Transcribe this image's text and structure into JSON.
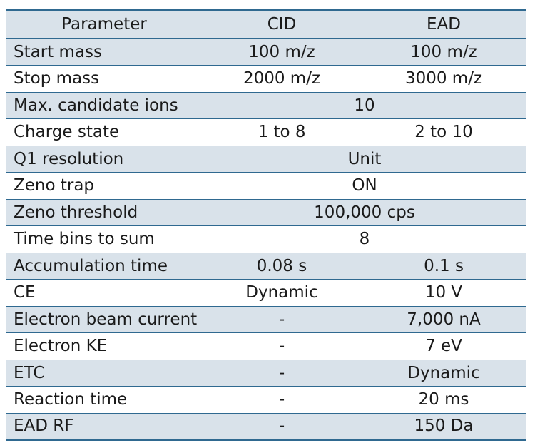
{
  "table": {
    "headers": [
      "Parameter",
      "CID",
      "EAD"
    ],
    "rows": [
      {
        "label": "Start mass",
        "cid": "100 m/z",
        "ead": "100 m/z"
      },
      {
        "label": "Stop mass",
        "cid": "2000 m/z",
        "ead": "3000 m/z"
      },
      {
        "label": "Max. candidate ions",
        "merged": "10"
      },
      {
        "label": "Charge state",
        "cid": "1 to 8",
        "ead": "2 to 10"
      },
      {
        "label": "Q1 resolution",
        "merged": "Unit"
      },
      {
        "label": "Zeno trap",
        "merged": "ON"
      },
      {
        "label": "Zeno threshold",
        "merged": "100,000 cps"
      },
      {
        "label": "Time bins to sum",
        "merged": "8"
      },
      {
        "label": "Accumulation time",
        "cid": "0.08 s",
        "ead": "0.1 s"
      },
      {
        "label": "CE",
        "cid": "Dynamic",
        "ead": "10 V"
      },
      {
        "label": "Electron beam current",
        "cid": "-",
        "ead": "7,000 nA"
      },
      {
        "label": "Electron KE",
        "cid": "-",
        "ead": "7 eV"
      },
      {
        "label": "ETC",
        "cid": "-",
        "ead": "Dynamic"
      },
      {
        "label": "Reaction time",
        "cid": "-",
        "ead": "20 ms"
      },
      {
        "label": "EAD RF",
        "cid": "-",
        "ead": "150 Da"
      }
    ]
  }
}
